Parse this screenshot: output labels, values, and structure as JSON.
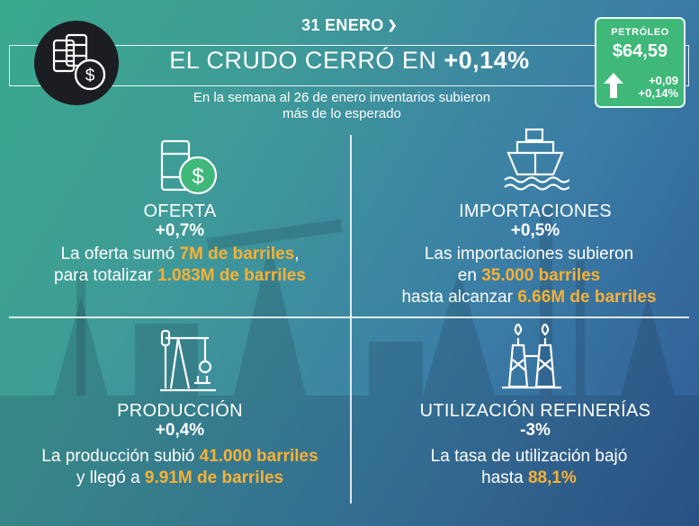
{
  "header": {
    "date": "31 ENERO",
    "title_prefix": "EL CRUDO CERRÓ EN",
    "title_value": "+0,14%",
    "subtitle_line1": "En la semana al 26 de enero inventarios subieron",
    "subtitle_line2": "más de lo esperado"
  },
  "price_card": {
    "label": "PETRÓLEO",
    "value": "$64,59",
    "change_abs": "+0,09",
    "change_pct": "+0,14%",
    "direction": "up"
  },
  "quadrants": {
    "oferta": {
      "label": "OFERTA",
      "value": "+0,7%",
      "l1_pre": "La oferta sumó ",
      "l1_hl": "7M de barriles",
      "l1_post": ",",
      "l2_pre": "para totalizar ",
      "l2_hl": "1.083M de barriles"
    },
    "importaciones": {
      "label": "IMPORTACIONES",
      "value": "+0,5%",
      "l1": "Las importaciones subieron",
      "l2_pre": "en ",
      "l2_hl": "35.000 barriles",
      "l3_pre": "hasta alcanzar ",
      "l3_hl": "6.66M de barriles"
    },
    "produccion": {
      "label": "PRODUCCIÓN",
      "value": "+0,4%",
      "l1_pre": "La producción subió ",
      "l1_hl": "41.000 barriles",
      "l2_pre": "y llegó a ",
      "l2_hl": "9.91M de barriles"
    },
    "refinerias": {
      "label": "UTILIZACIÓN REFINERÍAS",
      "value": "-3%",
      "l1": "La tasa de utilización bajó",
      "l2_pre": "hasta ",
      "l2_hl": "88,1%"
    }
  },
  "colors": {
    "highlight": "#f7b136",
    "card_green": "#3fb87a",
    "logo_bg": "#1b1d22"
  },
  "icons": [
    "barrels-dollar-icon",
    "chevron-down-icon",
    "arrow-up-icon",
    "oil-barrel-dollar-icon",
    "ship-icon",
    "pumpjack-icon",
    "refinery-icon"
  ]
}
